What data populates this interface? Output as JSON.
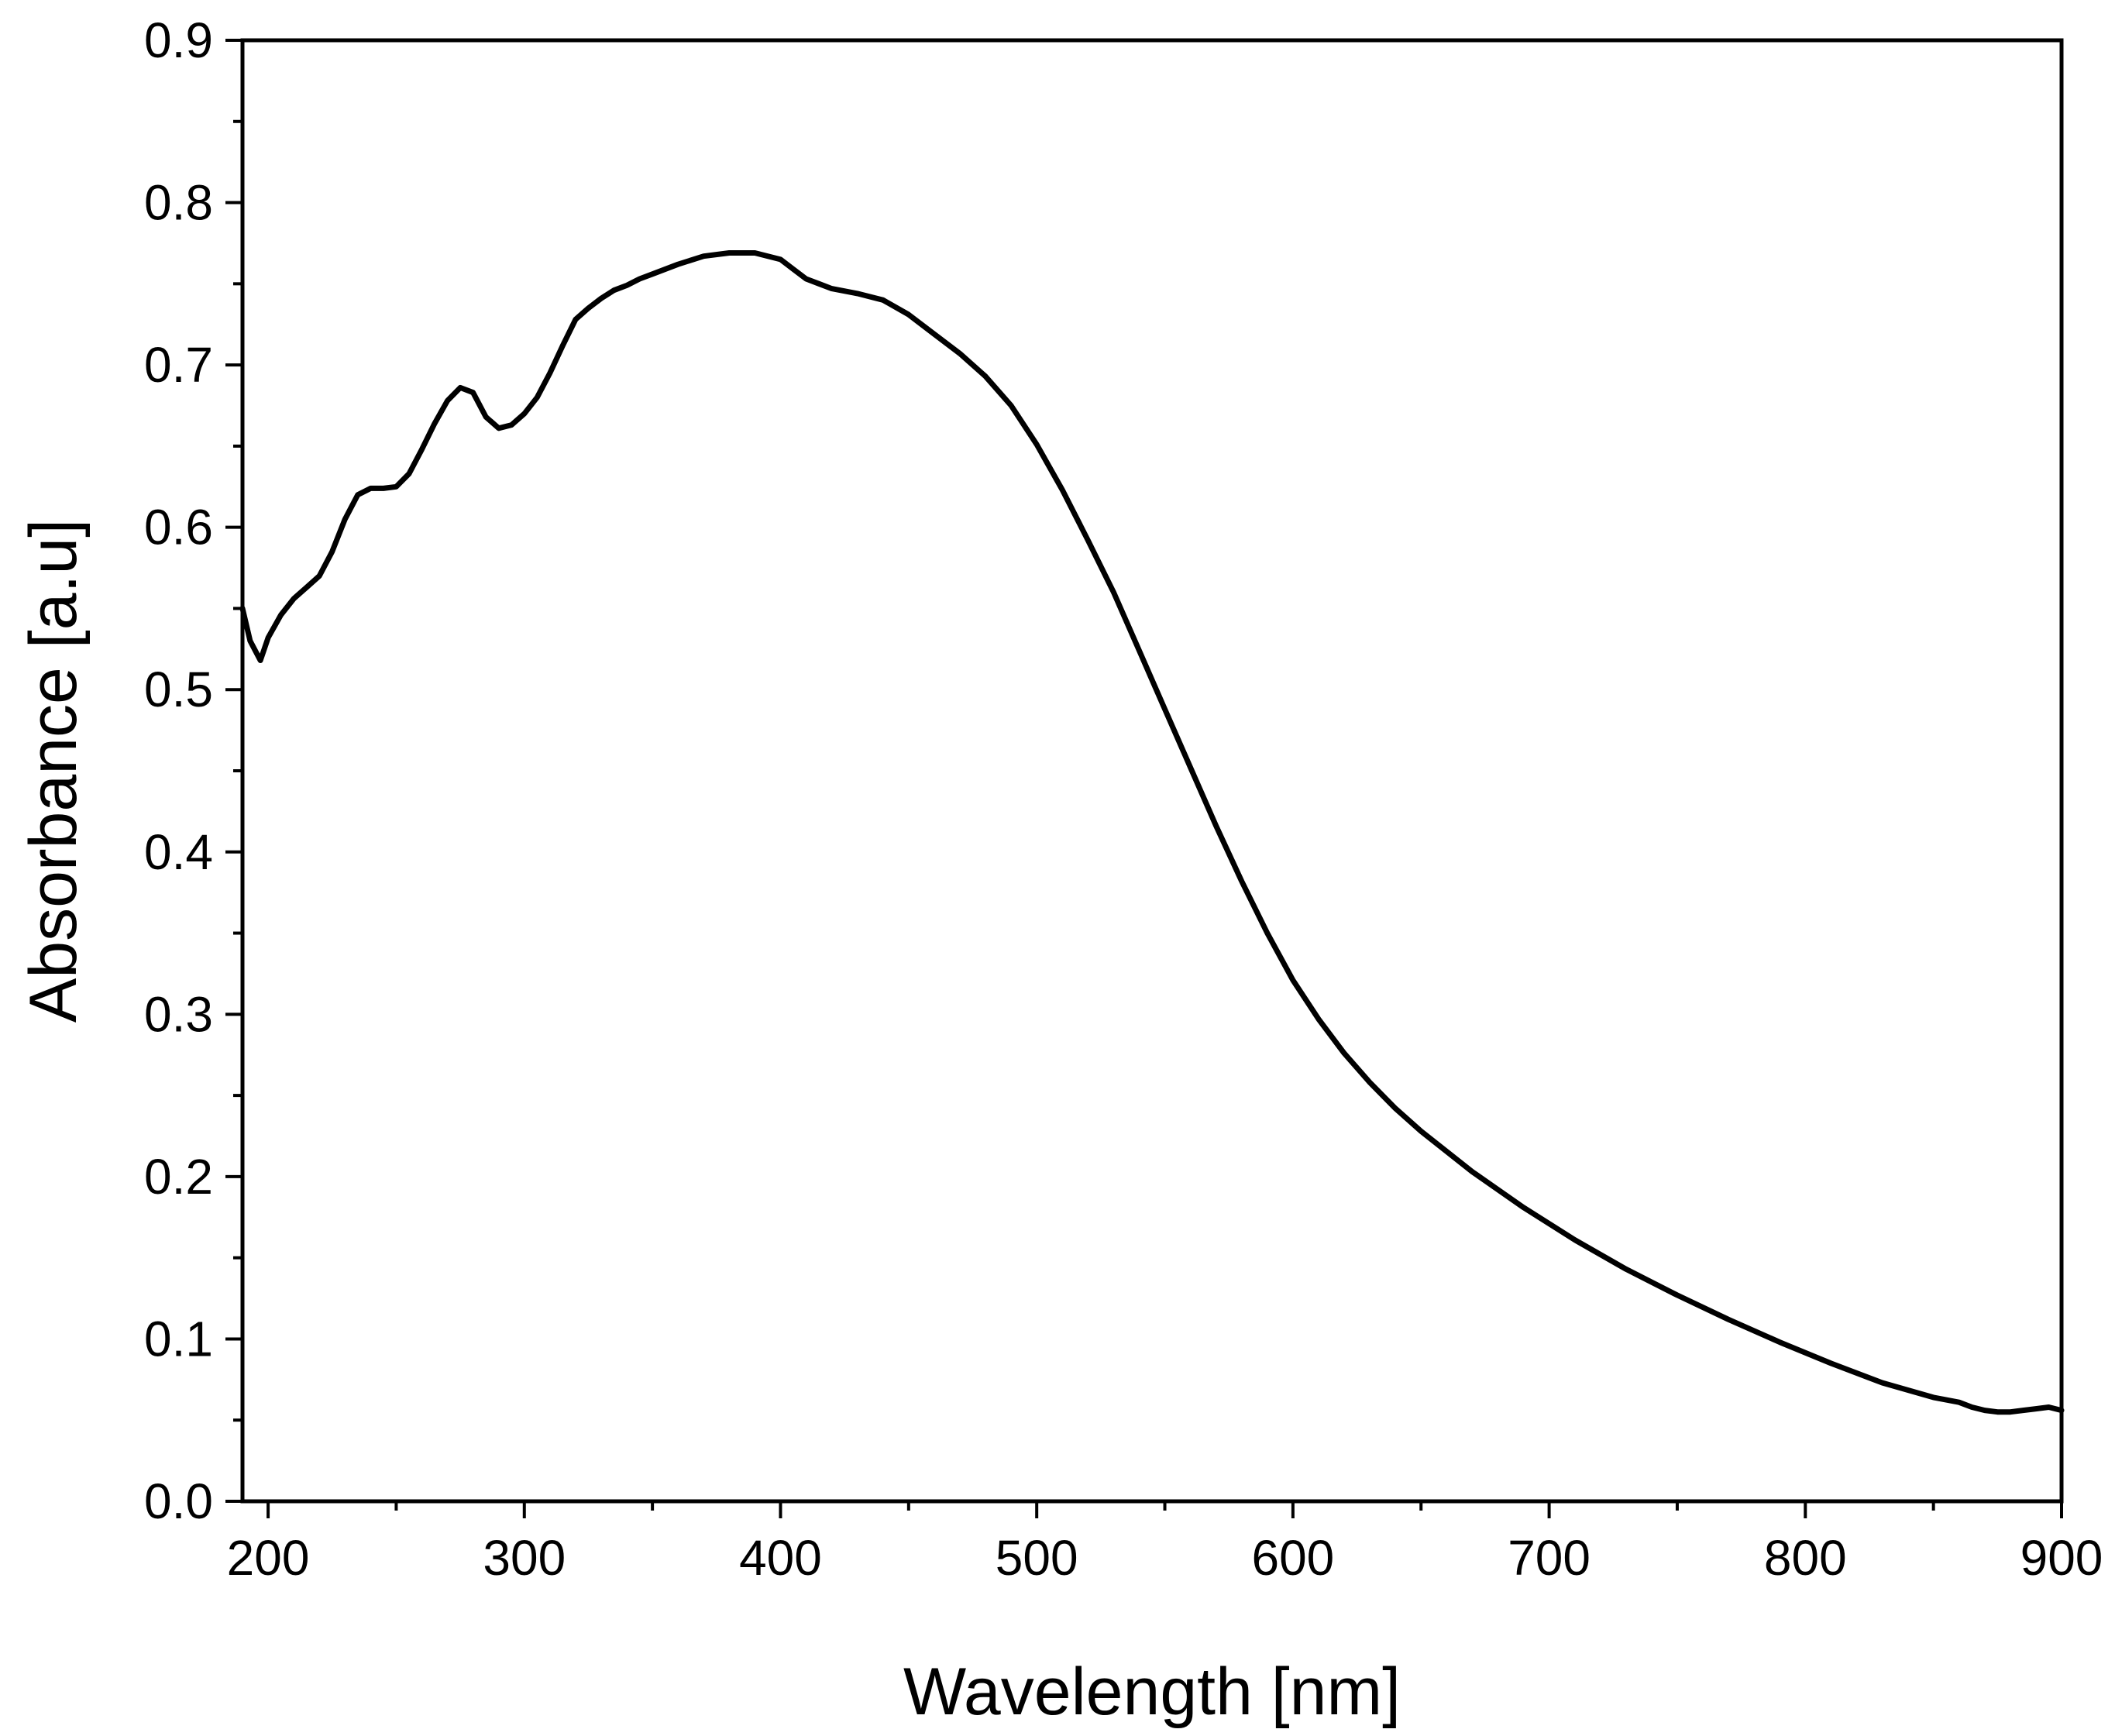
{
  "chart_data": {
    "type": "line",
    "title": "",
    "xlabel": "Wavelength [nm]",
    "ylabel": "Absorbance [a.u]",
    "xlim": [
      190,
      900
    ],
    "ylim": [
      0.0,
      0.9
    ],
    "x_ticks": [
      200,
      300,
      400,
      500,
      600,
      700,
      800,
      900
    ],
    "x_tick_labels": [
      "200",
      "300",
      "400",
      "500",
      "600",
      "700",
      "800",
      "900"
    ],
    "y_ticks": [
      0.0,
      0.1,
      0.2,
      0.3,
      0.4,
      0.5,
      0.6,
      0.7,
      0.8,
      0.9
    ],
    "y_tick_labels": [
      "0.0",
      "0.1",
      "0.2",
      "0.3",
      "0.4",
      "0.5",
      "0.6",
      "0.7",
      "0.8",
      "0.9"
    ],
    "grid": false,
    "legend": "none",
    "line_color": "#000000",
    "series": [
      {
        "x": [
          190,
          193,
          197,
          200,
          205,
          210,
          215,
          220,
          225,
          230,
          235,
          240,
          245,
          250,
          255,
          260,
          265,
          270,
          275,
          280,
          285,
          290,
          295,
          300,
          305,
          310,
          315,
          320,
          325,
          330,
          335,
          340,
          345,
          350,
          360,
          370,
          380,
          390,
          400,
          405,
          410,
          415,
          420,
          430,
          440,
          450,
          460,
          470,
          480,
          490,
          500,
          510,
          520,
          530,
          540,
          550,
          560,
          570,
          580,
          590,
          600,
          610,
          620,
          630,
          640,
          650,
          670,
          690,
          710,
          730,
          750,
          770,
          790,
          810,
          830,
          850,
          860,
          865,
          870,
          875,
          880,
          885,
          890,
          895,
          900
        ],
        "y": [
          0.55,
          0.53,
          0.518,
          0.532,
          0.546,
          0.556,
          0.563,
          0.57,
          0.585,
          0.605,
          0.62,
          0.624,
          0.624,
          0.625,
          0.633,
          0.648,
          0.664,
          0.678,
          0.686,
          0.683,
          0.668,
          0.661,
          0.663,
          0.67,
          0.68,
          0.695,
          0.712,
          0.728,
          0.735,
          0.741,
          0.746,
          0.749,
          0.753,
          0.756,
          0.762,
          0.767,
          0.769,
          0.769,
          0.765,
          0.759,
          0.753,
          0.75,
          0.747,
          0.744,
          0.74,
          0.731,
          0.719,
          0.707,
          0.693,
          0.675,
          0.651,
          0.623,
          0.592,
          0.56,
          0.524,
          0.488,
          0.452,
          0.416,
          0.382,
          0.35,
          0.321,
          0.297,
          0.276,
          0.258,
          0.242,
          0.228,
          0.203,
          0.181,
          0.161,
          0.143,
          0.127,
          0.112,
          0.098,
          0.085,
          0.073,
          0.064,
          0.061,
          0.058,
          0.056,
          0.055,
          0.055,
          0.056,
          0.057,
          0.058,
          0.056
        ]
      }
    ]
  }
}
